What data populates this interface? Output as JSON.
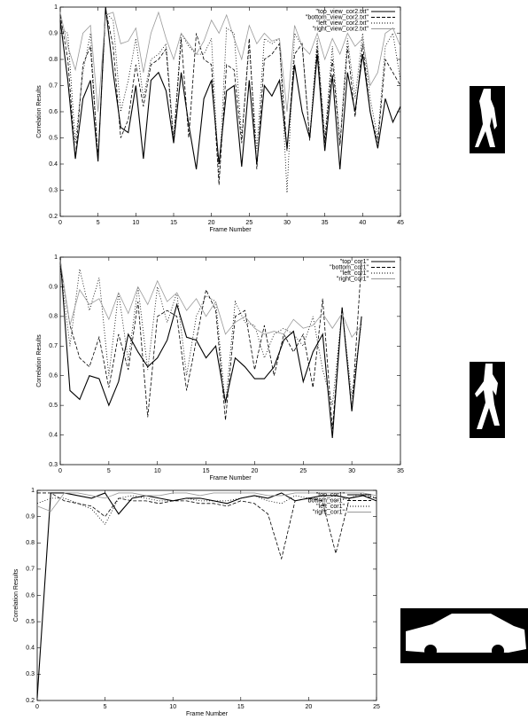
{
  "chart_data": [
    {
      "type": "line",
      "x_label": "Frame Number",
      "y_label": "Correlation Results",
      "legend": "upper right",
      "x": [
        0,
        1,
        2,
        3,
        4,
        5,
        6,
        7,
        8,
        9,
        10,
        11,
        12,
        13,
        14,
        15,
        16,
        17,
        18,
        19,
        20,
        21,
        22,
        23,
        24,
        25,
        26,
        27,
        28,
        29,
        30,
        31,
        32,
        33,
        34,
        35,
        36,
        37,
        38,
        39,
        40,
        41,
        42,
        43,
        44,
        45
      ],
      "xlim": [
        0,
        45
      ],
      "xticks": [
        0,
        5,
        10,
        15,
        20,
        25,
        30,
        35,
        40,
        45
      ],
      "ylim": [
        0.2,
        1
      ],
      "yticks": [
        0.2,
        0.3,
        0.4,
        0.5,
        0.6,
        0.7,
        0.8,
        0.9,
        1
      ],
      "series": [
        {
          "name": "\"top_view_cor2.txt\"",
          "color": "#000000",
          "dash": "solid",
          "values": [
            0.95,
            0.72,
            0.42,
            0.65,
            0.72,
            0.41,
            1.0,
            0.75,
            0.54,
            0.52,
            0.7,
            0.42,
            0.72,
            0.75,
            0.68,
            0.48,
            0.75,
            0.55,
            0.38,
            0.65,
            0.72,
            0.4,
            0.68,
            0.7,
            0.39,
            0.72,
            0.4,
            0.7,
            0.66,
            0.72,
            0.46,
            0.78,
            0.6,
            0.5,
            0.82,
            0.45,
            0.74,
            0.38,
            0.75,
            0.6,
            0.82,
            0.6,
            0.46,
            0.65,
            0.56,
            0.62
          ]
        },
        {
          "name": "\"bottom_view_cor2.txt\"",
          "color": "#000000",
          "dash": "dashed",
          "values": [
            0.97,
            0.8,
            0.42,
            0.78,
            0.85,
            0.42,
            0.99,
            0.85,
            0.5,
            0.57,
            0.78,
            0.62,
            0.78,
            0.8,
            0.84,
            0.48,
            0.88,
            0.5,
            0.9,
            0.8,
            0.78,
            0.32,
            0.78,
            0.76,
            0.48,
            0.88,
            0.38,
            0.8,
            0.82,
            0.86,
            0.45,
            0.82,
            0.86,
            0.49,
            0.85,
            0.48,
            0.8,
            0.47,
            0.85,
            0.58,
            0.86,
            0.6,
            0.48,
            0.8,
            0.75,
            0.7
          ]
        },
        {
          "name": "\"left_view_cor2.txt\"",
          "color": "#000000",
          "dash": "dotted",
          "values": [
            0.92,
            0.9,
            0.48,
            0.75,
            0.9,
            0.42,
            0.98,
            0.95,
            0.6,
            0.72,
            0.88,
            0.65,
            0.8,
            0.82,
            0.86,
            0.5,
            0.9,
            0.85,
            0.82,
            0.82,
            0.88,
            0.34,
            0.92,
            0.9,
            0.5,
            0.85,
            0.45,
            0.88,
            0.86,
            0.88,
            0.29,
            0.9,
            0.85,
            0.5,
            0.88,
            0.5,
            0.85,
            0.48,
            0.88,
            0.65,
            0.9,
            0.65,
            0.5,
            0.85,
            0.9,
            0.72
          ]
        },
        {
          "name": "\"right_view_cor2.txt\"",
          "color": "#999999",
          "dash": "solid",
          "values": [
            0.98,
            0.85,
            0.76,
            0.9,
            0.93,
            0.6,
            0.97,
            0.98,
            0.86,
            0.87,
            0.92,
            0.75,
            0.9,
            0.98,
            0.88,
            0.8,
            0.9,
            0.86,
            0.82,
            0.87,
            0.95,
            0.9,
            0.97,
            0.88,
            0.8,
            0.93,
            0.86,
            0.9,
            0.87,
            0.88,
            0.6,
            0.93,
            0.85,
            0.82,
            0.9,
            0.8,
            0.88,
            0.82,
            0.9,
            0.85,
            0.88,
            0.7,
            0.75,
            0.9,
            0.92,
            0.85
          ]
        }
      ]
    },
    {
      "type": "line",
      "x_label": "Frame Number",
      "y_label": "Correlation Results",
      "legend": "upper right",
      "x": [
        0,
        1,
        2,
        3,
        4,
        5,
        6,
        7,
        8,
        9,
        10,
        11,
        12,
        13,
        14,
        15,
        16,
        17,
        18,
        19,
        20,
        21,
        22,
        23,
        24,
        25,
        26,
        27,
        28,
        29,
        30,
        31
      ],
      "xlim": [
        0,
        35
      ],
      "xticks": [
        0,
        5,
        10,
        15,
        20,
        25,
        30,
        35
      ],
      "ylim": [
        0.3,
        1
      ],
      "yticks": [
        0.3,
        0.4,
        0.5,
        0.6,
        0.7,
        0.8,
        0.9,
        1
      ],
      "series": [
        {
          "name": "\"top_cor1\"",
          "color": "#000000",
          "dash": "solid",
          "values": [
            1.0,
            0.55,
            0.52,
            0.6,
            0.59,
            0.5,
            0.58,
            0.74,
            0.68,
            0.63,
            0.66,
            0.72,
            0.84,
            0.73,
            0.72,
            0.66,
            0.7,
            0.51,
            0.66,
            0.63,
            0.59,
            0.59,
            0.63,
            0.72,
            0.75,
            0.58,
            0.68,
            0.74,
            0.39,
            0.83,
            0.48,
            0.8
          ]
        },
        {
          "name": "\"bottom_cor1\"",
          "color": "#000000",
          "dash": "dashed",
          "values": [
            0.98,
            0.77,
            0.66,
            0.63,
            0.73,
            0.56,
            0.74,
            0.62,
            0.85,
            0.46,
            0.8,
            0.82,
            0.8,
            0.55,
            0.72,
            0.89,
            0.82,
            0.45,
            0.8,
            0.82,
            0.62,
            0.77,
            0.6,
            0.74,
            0.68,
            0.74,
            0.56,
            0.86,
            0.42,
            0.83,
            0.48,
            0.99
          ]
        },
        {
          "name": "\"left_cor1\"",
          "color": "#000000",
          "dash": "dotted",
          "values": [
            0.97,
            0.7,
            0.96,
            0.82,
            0.93,
            0.6,
            0.88,
            0.65,
            0.9,
            0.62,
            0.9,
            0.78,
            0.88,
            0.6,
            0.8,
            0.87,
            0.85,
            0.5,
            0.85,
            0.78,
            0.77,
            0.66,
            0.74,
            0.76,
            0.74,
            0.7,
            0.8,
            0.62,
            0.5,
            0.82,
            0.53,
            0.78
          ]
        },
        {
          "name": "\"right_cor1\"",
          "color": "#999999",
          "dash": "solid",
          "values": [
            0.99,
            0.77,
            0.89,
            0.84,
            0.86,
            0.79,
            0.88,
            0.81,
            0.9,
            0.84,
            0.92,
            0.85,
            0.88,
            0.82,
            0.86,
            0.8,
            0.85,
            0.74,
            0.78,
            0.8,
            0.76,
            0.74,
            0.75,
            0.74,
            0.79,
            0.76,
            0.77,
            0.81,
            0.76,
            0.81,
            0.73,
            0.77
          ]
        }
      ]
    },
    {
      "type": "line",
      "x_label": "Frame Number",
      "y_label": "Correlation Results",
      "legend": "upper right",
      "x": [
        0,
        1,
        2,
        3,
        4,
        5,
        6,
        7,
        8,
        9,
        10,
        11,
        12,
        13,
        14,
        15,
        16,
        17,
        18,
        19,
        20,
        21,
        22,
        23,
        24,
        25
      ],
      "xlim": [
        0,
        25
      ],
      "xticks": [
        0,
        5,
        10,
        15,
        20,
        25
      ],
      "ylim": [
        0.2,
        1
      ],
      "yticks": [
        0.2,
        0.3,
        0.4,
        0.5,
        0.6,
        0.7,
        0.8,
        0.9,
        1
      ],
      "series": [
        {
          "name": "\"top_cor1\"",
          "color": "#000000",
          "dash": "solid",
          "values": [
            0.21,
            0.99,
            0.99,
            0.98,
            0.97,
            0.99,
            0.91,
            0.97,
            0.98,
            0.97,
            0.96,
            0.97,
            0.97,
            0.96,
            0.95,
            0.97,
            0.98,
            0.97,
            0.99,
            0.96,
            0.97,
            0.98,
            0.98,
            0.97,
            0.98,
            0.96
          ]
        },
        {
          "name": "\"bottom_cor1\"",
          "color": "#000000",
          "dash": "dashed",
          "values": [
            0.99,
            0.99,
            0.96,
            0.95,
            0.94,
            0.9,
            0.97,
            0.96,
            0.96,
            0.95,
            0.96,
            0.96,
            0.95,
            0.95,
            0.94,
            0.96,
            0.95,
            0.91,
            0.74,
            0.96,
            0.97,
            0.96,
            0.76,
            0.97,
            0.98,
            0.97
          ]
        },
        {
          "name": "\"left_cor1\"",
          "color": "#000000",
          "dash": "dotted",
          "values": [
            0.95,
            0.97,
            0.97,
            0.95,
            0.93,
            0.87,
            0.97,
            0.98,
            0.97,
            0.96,
            0.96,
            0.97,
            0.96,
            0.96,
            0.96,
            0.97,
            0.98,
            0.96,
            0.95,
            0.98,
            0.97,
            0.97,
            0.96,
            0.97,
            0.99,
            0.97
          ]
        },
        {
          "name": "\"right_cor1\"",
          "color": "#999999",
          "dash": "solid",
          "values": [
            0.94,
            0.92,
            0.99,
            0.99,
            0.98,
            0.97,
            0.99,
            0.99,
            0.98,
            0.98,
            0.99,
            0.99,
            0.98,
            0.99,
            0.99,
            0.99,
            0.99,
            0.98,
            0.98,
            0.99,
            0.99,
            0.99,
            0.99,
            0.99,
            0.99,
            0.98
          ]
        }
      ]
    }
  ]
}
